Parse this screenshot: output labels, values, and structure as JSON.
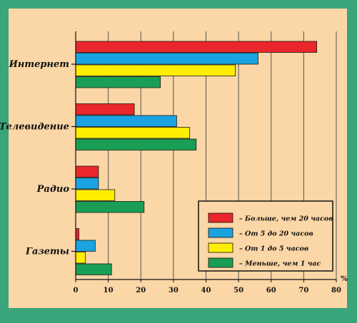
{
  "chart_data": {
    "type": "bar",
    "orientation": "horizontal",
    "categories": [
      "Интернет",
      "Телевидение",
      "Радио",
      "Газеты"
    ],
    "series": [
      {
        "name": "– Больше, чем 20 часов",
        "color": "#e8262b",
        "values": [
          74,
          18,
          7,
          1
        ]
      },
      {
        "name": "– От 5 до 20 часов",
        "color": "#1aa3e0",
        "values": [
          56,
          31,
          7,
          6
        ]
      },
      {
        "name": "– От 1 до 5 часов",
        "color": "#ffee00",
        "values": [
          49,
          35,
          12,
          3
        ]
      },
      {
        "name": "– Меньше, чем 1 час",
        "color": "#1a9e55",
        "values": [
          26,
          37,
          21,
          11
        ]
      }
    ],
    "xlim": [
      0,
      80
    ],
    "xticks": [
      0,
      10,
      20,
      30,
      40,
      50,
      60,
      70,
      80
    ],
    "unit": "%",
    "grid": true,
    "legend_position": "bottom-right",
    "title": "",
    "xlabel": "",
    "ylabel": ""
  },
  "colors": {
    "frame": "#3aa57a",
    "plot_background": "#fbd6a6",
    "legend_background": "#fbd6a6"
  }
}
